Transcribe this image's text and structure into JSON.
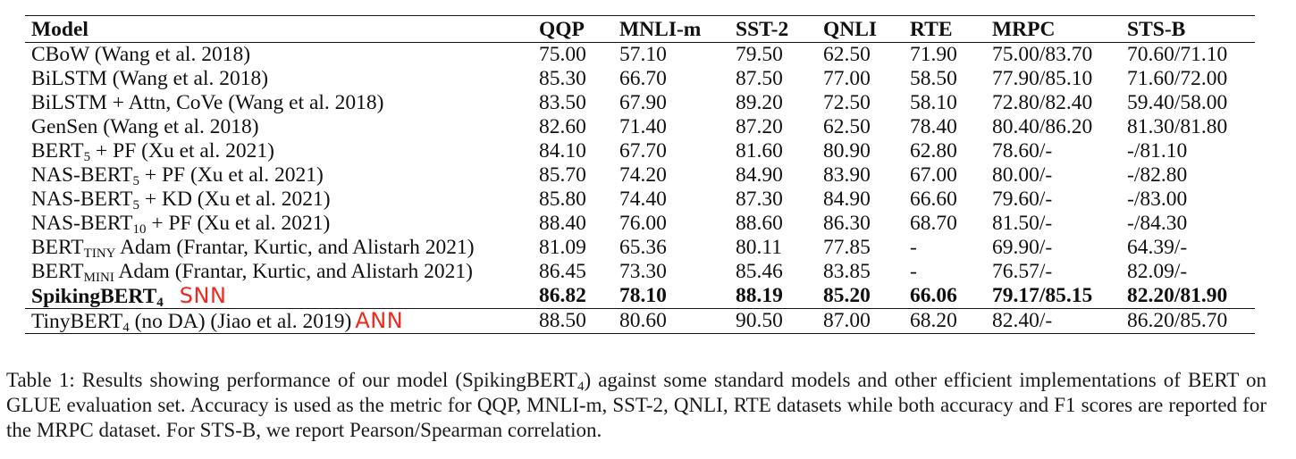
{
  "table": {
    "headers": [
      "Model",
      "QQP",
      "MNLI-m",
      "SST-2",
      "QNLI",
      "RTE",
      "MRPC",
      "STS-B"
    ],
    "rows": [
      {
        "name": "CBoW (Wang et al. 2018)",
        "values": [
          "75.00",
          "57.10",
          "79.50",
          "62.50",
          "71.90",
          "75.00/83.70",
          "70.60/71.10"
        ]
      },
      {
        "name": "BiLSTM (Wang et al. 2018)",
        "values": [
          "85.30",
          "66.70",
          "87.50",
          "77.00",
          "58.50",
          "77.90/85.10",
          "71.60/72.00"
        ]
      },
      {
        "name": "BiLSTM + Attn, CoVe (Wang et al. 2018)",
        "values": [
          "83.50",
          "67.90",
          "89.20",
          "72.50",
          "58.10",
          "72.80/82.40",
          "59.40/58.00"
        ]
      },
      {
        "name": "GenSen (Wang et al. 2018)",
        "values": [
          "82.60",
          "71.40",
          "87.20",
          "62.50",
          "78.40",
          "80.40/86.20",
          "81.30/81.80"
        ]
      },
      {
        "name_pre": "BERT",
        "name_sub": "5",
        "name_post": " + PF (Xu et al. 2021)",
        "values": [
          "84.10",
          "67.70",
          "81.60",
          "80.90",
          "62.80",
          "78.60/-",
          "-/81.10"
        ]
      },
      {
        "name_pre": "NAS-BERT",
        "name_sub": "5",
        "name_post": " + PF (Xu et al. 2021)",
        "values": [
          "85.70",
          "74.20",
          "84.90",
          "83.90",
          "67.00",
          "80.00/-",
          "-/82.80"
        ]
      },
      {
        "name_pre": "NAS-BERT",
        "name_sub": "5",
        "name_post": " + KD (Xu et al. 2021)",
        "values": [
          "85.80",
          "74.40",
          "87.30",
          "84.90",
          "66.60",
          "79.60/-",
          "-/83.00"
        ]
      },
      {
        "name_pre": "NAS-BERT",
        "name_sub": "10",
        "name_post": " + PF (Xu et al. 2021)",
        "values": [
          "88.40",
          "76.00",
          "88.60",
          "86.30",
          "68.70",
          "81.50/-",
          "-/84.30"
        ]
      },
      {
        "name_pre": "BERT",
        "name_sub": "TINY",
        "name_post": " Adam (Frantar, Kurtic, and Alistarh 2021)",
        "values": [
          "81.09",
          "65.36",
          "80.11",
          "77.85",
          "-",
          "69.90/-",
          "64.39/-"
        ]
      },
      {
        "name_pre": "BERT",
        "name_sub": "MINI",
        "name_post": " Adam (Frantar, Kurtic, and Alistarh 2021)",
        "values": [
          "86.45",
          "73.30",
          "85.46",
          "83.85",
          "-",
          "76.57/-",
          "82.09/-"
        ]
      },
      {
        "name_pre": "SpikingBERT",
        "name_sub": "4",
        "name_post": "",
        "annotation": "SNN",
        "values": [
          "86.82",
          "78.10",
          "88.19",
          "85.20",
          "66.06",
          "79.17/85.15",
          "82.20/81.90"
        ]
      },
      {
        "name_pre": "TinyBERT",
        "name_sub": "4",
        "name_post": " (no DA) (Jiao et al. 2019)",
        "annotation": "ANN",
        "values": [
          "88.50",
          "80.60",
          "90.50",
          "87.00",
          "68.20",
          "82.40/-",
          "86.20/85.70"
        ]
      }
    ]
  },
  "caption": {
    "before_sub": "Table 1: Results showing performance of our model (SpikingBERT",
    "sub": "4",
    "after_sub": ") against some standard models and other efficient implementations of BERT on GLUE evaluation set. Accuracy is used as the metric for QQP, MNLI-m, SST-2, QNLI, RTE datasets while both accuracy and F1 scores are reported for the MRPC dataset. For STS-B, we report Pearson/Spearman correlation."
  },
  "colors": {
    "annotation": "#ee2a1f",
    "text": "#111111"
  }
}
